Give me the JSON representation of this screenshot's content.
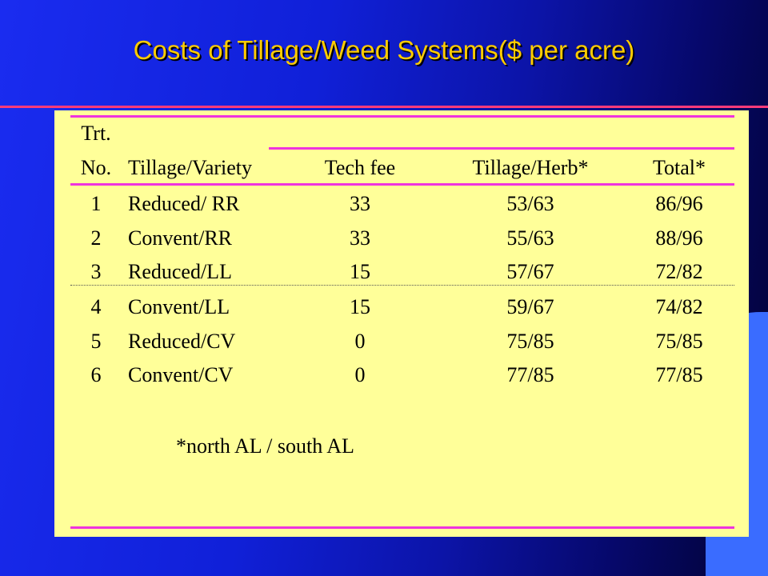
{
  "slide": {
    "title": "Costs of Tillage/Weed Systems($ per acre)",
    "colors": {
      "title": "#ffcc00",
      "rule": "#ff3b7a",
      "panel": "#ffff99",
      "table_rule": "#ee33dd"
    }
  },
  "table": {
    "header_top": "Trt.",
    "headers": [
      "No.",
      "Tillage/Variety",
      "Tech fee",
      "Tillage/Herb*",
      "Total*"
    ],
    "rows": [
      [
        "1",
        "Reduced/ RR",
        "33",
        "53/63",
        "86/96"
      ],
      [
        "2",
        "Convent/RR",
        "33",
        "55/63",
        "88/96"
      ],
      [
        "3",
        "Reduced/LL",
        "15",
        "57/67",
        "72/82"
      ],
      [
        "4",
        "Convent/LL",
        "15",
        "59/67",
        "74/82"
      ],
      [
        "5",
        "Reduced/CV",
        "0",
        "75/85",
        "75/85"
      ],
      [
        "6",
        "Convent/CV",
        "0",
        "77/85",
        "77/85"
      ]
    ],
    "footnote": "*north AL / south AL"
  }
}
